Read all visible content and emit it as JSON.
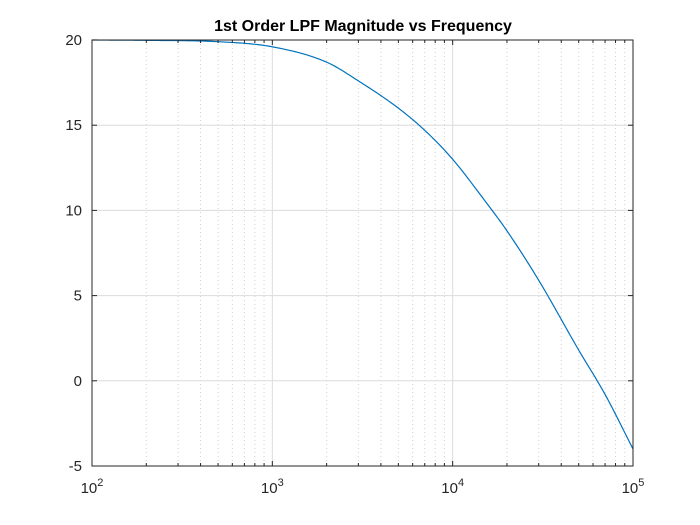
{
  "chart_data": {
    "type": "line",
    "title": "1st Order LPF Magnitude vs Frequency",
    "xlabel": "",
    "ylabel": "",
    "xscale": "log",
    "xlim": [
      100,
      100000
    ],
    "ylim": [
      -5,
      20
    ],
    "grid": true,
    "x_ticks": [
      {
        "base": "10",
        "exp": "2"
      },
      {
        "base": "10",
        "exp": "3"
      },
      {
        "base": "10",
        "exp": "4"
      },
      {
        "base": "10",
        "exp": "5"
      }
    ],
    "y_ticks": [
      "-5",
      "0",
      "5",
      "10",
      "15",
      "20"
    ],
    "series": [
      {
        "color": "#0072bd",
        "x": [
          100,
          200,
          500,
          1000,
          2000,
          3000,
          5000,
          7000,
          10000,
          15000,
          20000,
          30000,
          50000,
          70000,
          100000
        ],
        "y": [
          20.0,
          19.98,
          19.9,
          19.6,
          18.7,
          17.6,
          16.0,
          14.7,
          13.0,
          10.6,
          8.8,
          5.9,
          1.8,
          -0.8,
          -4.0
        ]
      }
    ]
  }
}
